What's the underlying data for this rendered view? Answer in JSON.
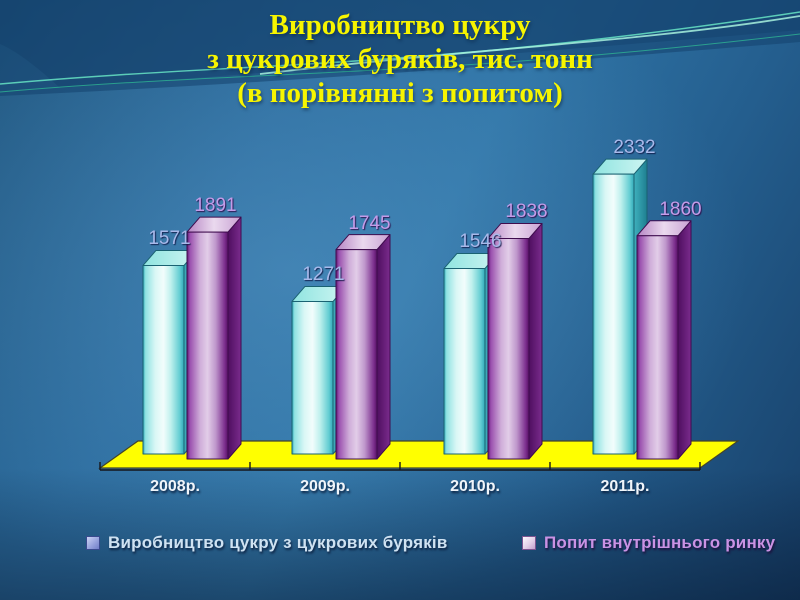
{
  "title": {
    "line1": "Виробництво цукру",
    "line2": "з цукрових буряків, тис. тонн",
    "line3": "(в порівнянні з попитом)"
  },
  "chart_data": {
    "type": "bar",
    "style": "3d-columns",
    "title": "Виробництво цукру з цукрових буряків, тис. тонн (в порівнянні з попитом)",
    "categories": [
      "2008р.",
      "2009р.",
      "2010р.",
      "2011р."
    ],
    "series": [
      {
        "name": "Виробництво цукру з цукрових буряків",
        "values": [
          1571,
          1271,
          1546,
          2332
        ],
        "color": "#62cfd6",
        "label_color": "#a9b9ea"
      },
      {
        "name": "Попит внутрішнього ринку",
        "values": [
          1891,
          1745,
          1838,
          1860
        ],
        "color": "#9b59ab",
        "label_color": "#c49ce8"
      }
    ],
    "xlabel": "",
    "ylabel": "",
    "ylim": [
      0,
      2332
    ],
    "value_axis_visible": false,
    "grid": false,
    "data_labels": true,
    "legend_position": "bottom",
    "floor_color": "#ffff00",
    "background_color": "#2c6c9e",
    "title_color": "#f7f500"
  },
  "legend": {
    "items": [
      {
        "label": "Виробництво цукру з цукрових буряків",
        "marker_color": "#97a3de"
      },
      {
        "label": "Попит внутрішнього ринку",
        "marker_color": "#e3cfe8"
      }
    ]
  }
}
